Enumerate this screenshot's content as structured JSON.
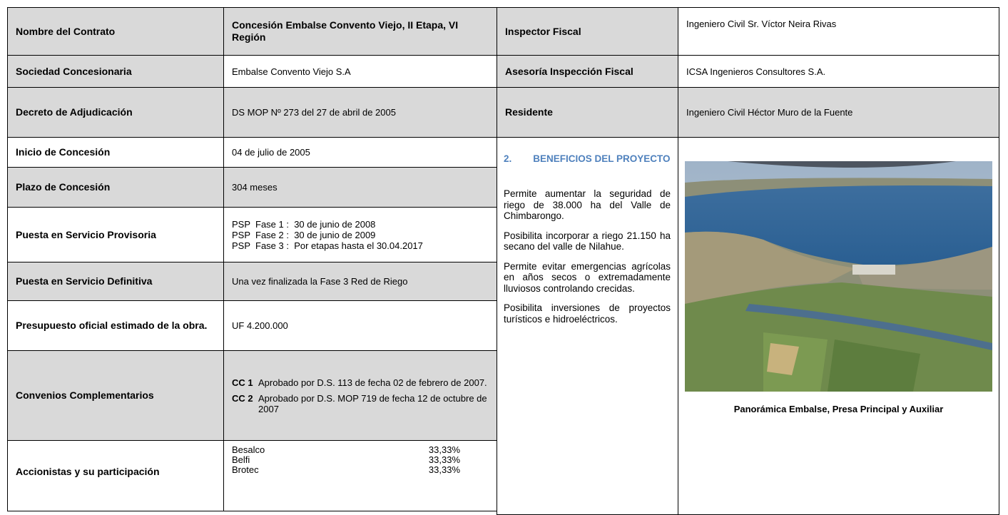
{
  "contract": [
    {
      "label": "Nombre del Contrato",
      "value": "Concesión Embalse Convento Viejo, II Etapa, VI Región"
    },
    {
      "label": "Sociedad Concesionaria",
      "value": "Embalse Convento Viejo S.A"
    },
    {
      "label": "Decreto de Adjudicación",
      "value": "DS MOP Nº 273 del 27 de abril de 2005"
    },
    {
      "label": "Inicio de Concesión",
      "value": "04 de julio de 2005"
    },
    {
      "label": "Plazo de Concesión",
      "value": "304 meses"
    },
    {
      "label": "Puesta en Servicio Provisoria",
      "lines": [
        "PSP  Fase 1 :  30 de junio de 2008",
        "PSP  Fase 2 :  30 de junio de 2009",
        "PSP  Fase 3 :  Por etapas hasta el 30.04.2017"
      ]
    },
    {
      "label": "Puesta en Servicio Definitiva",
      "value": "Una vez finalizada la Fase 3 Red de Riego"
    },
    {
      "label": "Presupuesto oficial estimado de la obra.",
      "value": "UF 4.200.000"
    },
    {
      "label": "Convenios Complementarios",
      "items": [
        {
          "code": "CC 1",
          "text": "Aprobado por D.S. 113 de fecha 02 de febrero de 2007."
        },
        {
          "code": "CC 2",
          "text": "Aprobado por D.S. MOP 719 de fecha 12 de octubre de 2007"
        }
      ]
    },
    {
      "label": "Accionistas y su participación",
      "shareholders": [
        {
          "name": "Besalco",
          "share": "33,33%"
        },
        {
          "name": "Belfi",
          "share": "33,33%"
        },
        {
          "name": "Brotec",
          "share": "33,33%"
        }
      ]
    }
  ],
  "inspection": [
    {
      "label": "Inspector Fiscal",
      "value": "Ingeniero Civil Sr. Víctor  Neira Rivas"
    },
    {
      "label": "Asesoría Inspección Fiscal",
      "value": "ICSA Ingenieros Consultores S.A."
    },
    {
      "label": "Residente",
      "value": "Ingeniero Civil Héctor Muro de la Fuente"
    }
  ],
  "benefits": {
    "number": "2.",
    "title": "BENEFICIOS DEL PROYECTO",
    "paragraphs": [
      "Permite aumentar la seguridad de riego de 38.000 ha del Valle de Chimbarongo.",
      "Posibilita incorporar a riego 21.150 ha secano del valle de Nilahue.",
      "Permite evitar emergencias agrícolas en años secos o extremadamente lluviosos controlando crecidas.",
      "Posibilita inversiones de proyectos turísticos e hidroeléctricos."
    ]
  },
  "photo_caption": "Panorámica Embalse, Presa Principal y Auxiliar"
}
